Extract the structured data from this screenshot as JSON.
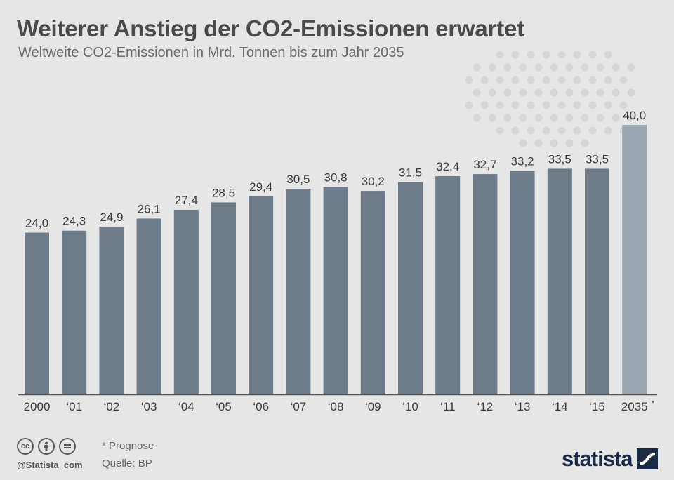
{
  "header": {
    "title": "Weiterer Anstieg der CO2-Emissionen erwartet",
    "subtitle": "Weltweite CO2-Emissionen in Mrd. Tonnen bis zum Jahr 2035"
  },
  "chart_data": {
    "type": "bar",
    "title": "Weiterer Anstieg der CO2-Emissionen erwartet",
    "subtitle": "Weltweite CO2-Emissionen in Mrd. Tonnen bis zum Jahr 2035",
    "categories": [
      "2000",
      "‘01",
      "‘02",
      "‘03",
      "‘04",
      "‘05",
      "‘06",
      "‘07",
      "‘08",
      "‘09",
      "‘10",
      "‘11",
      "‘12",
      "‘13",
      "‘14",
      "‘15",
      "2035"
    ],
    "values": [
      24.0,
      24.3,
      24.9,
      26.1,
      27.4,
      28.5,
      29.4,
      30.5,
      30.8,
      30.2,
      31.5,
      32.4,
      32.7,
      33.2,
      33.5,
      33.5,
      40.0
    ],
    "value_labels": [
      "24,0",
      "24,3",
      "24,9",
      "26,1",
      "27,4",
      "28,5",
      "29,4",
      "30,5",
      "30,8",
      "30,2",
      "31,5",
      "32,4",
      "32,7",
      "33,2",
      "33,5",
      "33,5",
      "40,0"
    ],
    "forecast_marker": "*",
    "forecast_index": 16,
    "ylim": [
      0,
      40
    ],
    "xlabel": "",
    "ylabel": "",
    "grid": false,
    "colors": {
      "bar": "#6e7b89",
      "forecast": "#9ba6b0",
      "axis": "#555555",
      "label": "#3d3d3d"
    }
  },
  "footer": {
    "note": "* Prognose",
    "source": "Quelle: BP",
    "handle": "@Statista_com",
    "brand": "statista",
    "license_icons": [
      "cc-icon",
      "by-icon",
      "nd-icon"
    ]
  }
}
